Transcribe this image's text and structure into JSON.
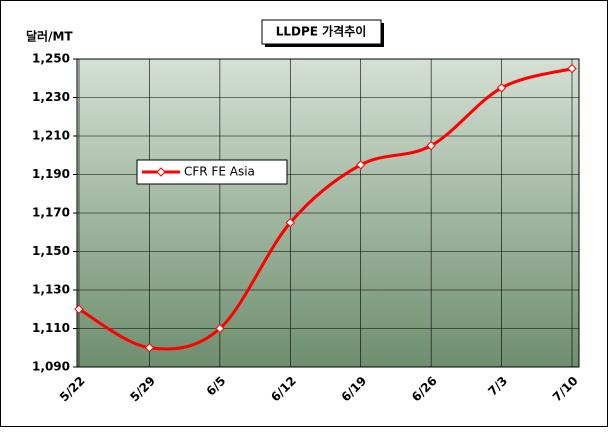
{
  "chart_data": {
    "type": "line",
    "title": "LLDPE 가격추이",
    "y_label": "달러/MT",
    "categories": [
      "5/22",
      "5/29",
      "6/5",
      "6/12",
      "6/19",
      "6/26",
      "7/3",
      "7/10"
    ],
    "series": [
      {
        "name": "CFR FE Asia",
        "color": "#ff0000",
        "values": [
          1120,
          1100,
          1110,
          1165,
          1195,
          1205,
          1235,
          1245
        ]
      }
    ],
    "ylim": [
      1090,
      1250
    ],
    "yticks": [
      {
        "value": 1090,
        "label": "1,090"
      },
      {
        "value": 1110,
        "label": "1,110"
      },
      {
        "value": 1130,
        "label": "1,130"
      },
      {
        "value": 1150,
        "label": "1,150"
      },
      {
        "value": 1170,
        "label": "1,170"
      },
      {
        "value": 1190,
        "label": "1,190"
      },
      {
        "value": 1210,
        "label": "1,210"
      },
      {
        "value": 1230,
        "label": "1,230"
      },
      {
        "value": 1250,
        "label": "1,250"
      }
    ],
    "grid": true
  }
}
